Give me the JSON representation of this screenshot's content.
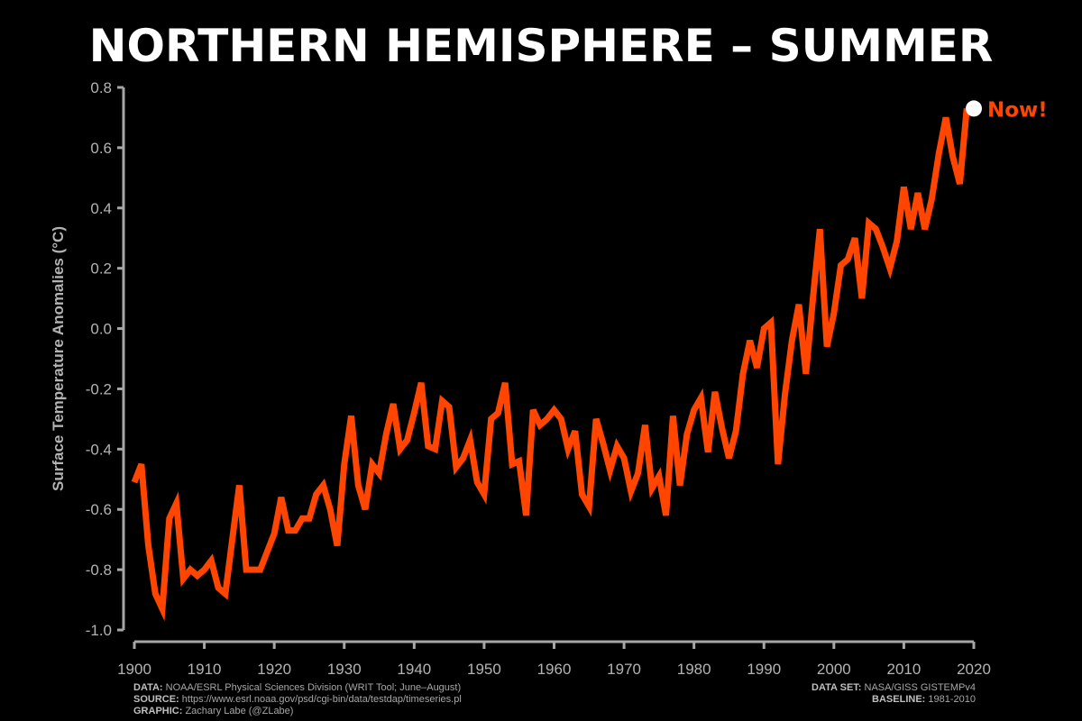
{
  "title": "NORTHERN HEMISPHERE – SUMMER",
  "footer": {
    "data_label": "DATA:",
    "data_value": "NOAA/ESRL Physical Sciences Division (WRIT Tool; June–August)",
    "source_label": "SOURCE:",
    "source_value": "https://www.esrl.noaa.gov/psd/cgi-bin/data/testdap/timeseries.pl",
    "graphic_label": "GRAPHIC:",
    "graphic_value": "Zachary Labe (@ZLabe)",
    "dataset_label": "DATA SET:",
    "dataset_value": "NASA/GISS GISTEMPv4",
    "baseline_label": "BASELINE:",
    "baseline_value": "1981-2010"
  },
  "colors": {
    "line": "#ff4500",
    "axis": "#a6a6a6",
    "background": "#000000",
    "marker": "#ffffff"
  },
  "chart_data": {
    "type": "line",
    "title": "NORTHERN HEMISPHERE – SUMMER",
    "xlabel": "",
    "ylabel": "Surface Temperature Anomalies (°C)",
    "xlim": [
      1900,
      2020
    ],
    "ylim": [
      -1.0,
      0.8
    ],
    "xticks": [
      1900,
      1910,
      1920,
      1930,
      1940,
      1950,
      1960,
      1970,
      1980,
      1990,
      2000,
      2010,
      2020
    ],
    "xtick_labels": [
      "1900",
      "1910",
      "1920",
      "1930",
      "1940",
      "1950",
      "1960",
      "1970",
      "1980",
      "1990",
      "2000",
      "2010",
      "2020"
    ],
    "yticks": [
      -1.0,
      -0.8,
      -0.6,
      -0.4,
      -0.2,
      0.0,
      0.2,
      0.4,
      0.6,
      0.8
    ],
    "ytick_labels": [
      "-1.0",
      "-0.8",
      "-0.6",
      "-0.4",
      "-0.2",
      "0.0",
      "0.2",
      "0.4",
      "0.6",
      "0.8"
    ],
    "grid": false,
    "annotation": {
      "text": "Now!",
      "x": 2020,
      "y": 0.73
    },
    "series": [
      {
        "x": [
          1900,
          1901,
          1902,
          1903,
          1904,
          1905,
          1906,
          1907,
          1908,
          1909,
          1910,
          1911,
          1912,
          1913,
          1914,
          1915,
          1916,
          1917,
          1918,
          1919,
          1920,
          1921,
          1922,
          1923,
          1924,
          1925,
          1926,
          1927,
          1928,
          1929,
          1930,
          1931,
          1932,
          1933,
          1934,
          1935,
          1936,
          1937,
          1938,
          1939,
          1940,
          1941,
          1942,
          1943,
          1944,
          1945,
          1946,
          1947,
          1948,
          1949,
          1950,
          1951,
          1952,
          1953,
          1954,
          1955,
          1956,
          1957,
          1958,
          1959,
          1960,
          1961,
          1962,
          1963,
          1964,
          1965,
          1966,
          1967,
          1968,
          1969,
          1970,
          1971,
          1972,
          1973,
          1974,
          1975,
          1976,
          1977,
          1978,
          1979,
          1980,
          1981,
          1982,
          1983,
          1984,
          1985,
          1986,
          1987,
          1988,
          1989,
          1990,
          1991,
          1992,
          1993,
          1994,
          1995,
          1996,
          1997,
          1998,
          1999,
          2000,
          2001,
          2002,
          2003,
          2004,
          2005,
          2006,
          2007,
          2008,
          2009,
          2010,
          2011,
          2012,
          2013,
          2014,
          2015,
          2016,
          2017,
          2018,
          2019
        ],
        "values": [
          -0.51,
          -0.45,
          -0.72,
          -0.88,
          -0.93,
          -0.63,
          -0.58,
          -0.83,
          -0.8,
          -0.82,
          -0.8,
          -0.77,
          -0.86,
          -0.88,
          -0.7,
          -0.52,
          -0.8,
          -0.8,
          -0.8,
          -0.74,
          -0.68,
          -0.56,
          -0.67,
          -0.67,
          -0.63,
          -0.63,
          -0.55,
          -0.52,
          -0.6,
          -0.72,
          -0.45,
          -0.29,
          -0.52,
          -0.6,
          -0.45,
          -0.48,
          -0.35,
          -0.25,
          -0.4,
          -0.37,
          -0.28,
          -0.18,
          -0.39,
          -0.4,
          -0.24,
          -0.26,
          -0.46,
          -0.43,
          -0.37,
          -0.51,
          -0.55,
          -0.3,
          -0.28,
          -0.18,
          -0.45,
          -0.44,
          -0.62,
          -0.27,
          -0.32,
          -0.3,
          -0.27,
          -0.3,
          -0.4,
          -0.34,
          -0.55,
          -0.59,
          -0.3,
          -0.38,
          -0.47,
          -0.39,
          -0.43,
          -0.54,
          -0.48,
          -0.32,
          -0.53,
          -0.49,
          -0.62,
          -0.29,
          -0.52,
          -0.35,
          -0.27,
          -0.23,
          -0.41,
          -0.21,
          -0.33,
          -0.43,
          -0.34,
          -0.15,
          -0.04,
          -0.13,
          0.0,
          0.02,
          -0.45,
          -0.22,
          -0.04,
          0.08,
          -0.15,
          0.1,
          0.33,
          -0.06,
          0.05,
          0.21,
          0.23,
          0.3,
          0.1,
          0.35,
          0.33,
          0.27,
          0.2,
          0.29,
          0.47,
          0.33,
          0.45,
          0.33,
          0.43,
          0.58,
          0.7,
          0.57,
          0.48,
          0.73
        ]
      }
    ]
  }
}
